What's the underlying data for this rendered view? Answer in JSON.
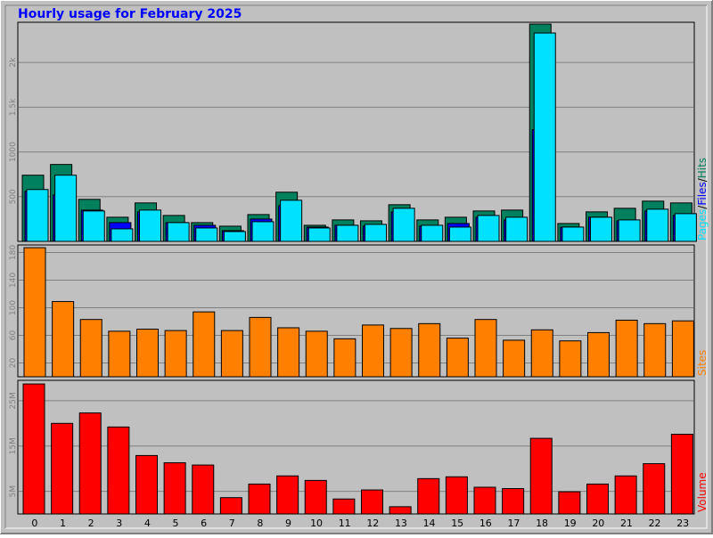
{
  "title": "Hourly usage for February 2025",
  "colors": {
    "background": "#c0c0c0",
    "hits": "#00805c",
    "files": "#0000ff",
    "pages": "#00e0ff",
    "sites": "#ff8000",
    "volume": "#ff0000",
    "title": "#0000ff",
    "grid": "#808080"
  },
  "chart_data": [
    {
      "type": "bar",
      "title": "Hourly usage for February 2025",
      "categories": [
        "0",
        "1",
        "2",
        "3",
        "4",
        "5",
        "6",
        "7",
        "8",
        "9",
        "10",
        "11",
        "12",
        "13",
        "14",
        "15",
        "16",
        "17",
        "18",
        "19",
        "20",
        "21",
        "22",
        "23"
      ],
      "series": [
        {
          "name": "Hits",
          "values": [
            740,
            860,
            470,
            270,
            430,
            290,
            210,
            170,
            300,
            550,
            180,
            240,
            230,
            410,
            240,
            270,
            340,
            350,
            2430,
            200,
            330,
            370,
            450,
            430
          ]
        },
        {
          "name": "Files",
          "values": [
            560,
            520,
            350,
            210,
            330,
            210,
            180,
            120,
            250,
            400,
            160,
            180,
            170,
            330,
            170,
            200,
            270,
            240,
            1250,
            160,
            270,
            230,
            340,
            290
          ]
        },
        {
          "name": "Pages",
          "values": [
            580,
            740,
            340,
            140,
            350,
            210,
            150,
            110,
            220,
            460,
            150,
            180,
            190,
            370,
            180,
            160,
            290,
            270,
            2330,
            160,
            270,
            240,
            360,
            310
          ]
        }
      ],
      "ylabel": "Pages/Files/Hits",
      "ytick_labels": [
        "500",
        "1000",
        "1.5k",
        "2k"
      ],
      "ylim": [
        0,
        2450
      ]
    },
    {
      "type": "bar",
      "categories": [
        "0",
        "1",
        "2",
        "3",
        "4",
        "5",
        "6",
        "7",
        "8",
        "9",
        "10",
        "11",
        "12",
        "13",
        "14",
        "15",
        "16",
        "17",
        "18",
        "19",
        "20",
        "21",
        "22",
        "23"
      ],
      "series": [
        {
          "name": "Sites",
          "values": [
            187,
            109,
            83,
            66,
            69,
            67,
            94,
            67,
            86,
            71,
            66,
            55,
            75,
            70,
            77,
            56,
            83,
            53,
            68,
            52,
            64,
            82,
            77,
            81
          ]
        }
      ],
      "ylabel": "Sites",
      "ytick_labels": [
        "20",
        "60",
        "100",
        "140",
        "180"
      ],
      "ylim": [
        0,
        191
      ]
    },
    {
      "type": "bar",
      "categories": [
        "0",
        "1",
        "2",
        "3",
        "4",
        "5",
        "6",
        "7",
        "8",
        "9",
        "10",
        "11",
        "12",
        "13",
        "14",
        "15",
        "16",
        "17",
        "18",
        "19",
        "20",
        "21",
        "22",
        "23"
      ],
      "series": [
        {
          "name": "Volume",
          "values": [
            28.7,
            20.0,
            22.3,
            19.2,
            12.9,
            11.3,
            10.8,
            3.6,
            6.6,
            8.4,
            7.4,
            3.3,
            5.3,
            1.6,
            7.8,
            8.2,
            5.9,
            5.6,
            16.7,
            4.9,
            6.6,
            8.4,
            11.1,
            17.6
          ]
        }
      ],
      "ylabel": "Volume",
      "ytick_labels": [
        "5M",
        "15M",
        "25M"
      ],
      "ylim": [
        0,
        29.5
      ]
    }
  ]
}
